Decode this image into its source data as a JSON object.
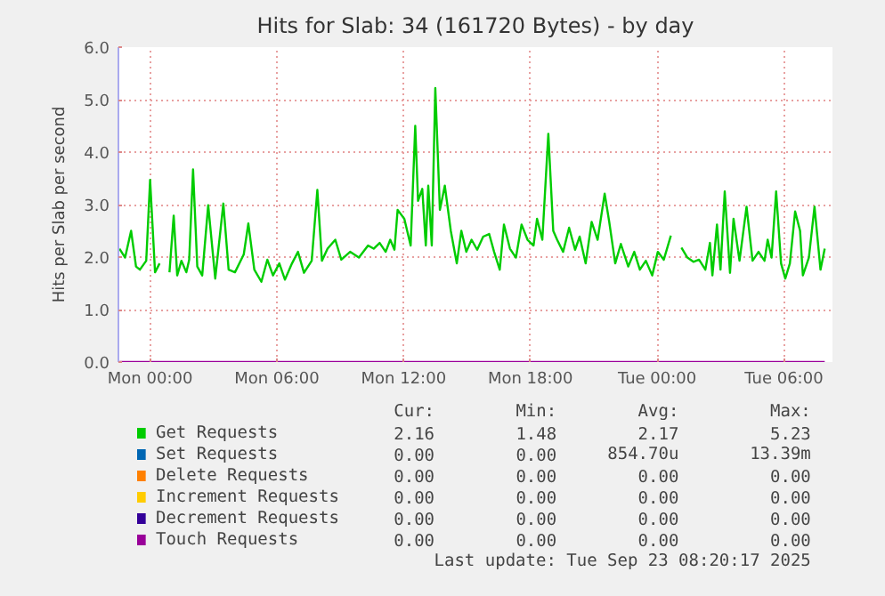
{
  "chart_data": {
    "type": "line",
    "title": "Hits for Slab: 34 (161720 Bytes) - by day",
    "ylabel": "Hits per Slab per second",
    "x": [
      "2025-09-21T22:33",
      "2025-09-21T22:49",
      "2025-09-21T23:06",
      "2025-09-21T23:20",
      "2025-09-21T23:31",
      "2025-09-21T23:49",
      "2025-09-22T00:00",
      "2025-09-22T00:14",
      "2025-09-22T00:27",
      "2025-09-22T00:40",
      "2025-09-22T00:55",
      "2025-09-22T01:07",
      "2025-09-22T01:17",
      "2025-09-22T01:29",
      "2025-09-22T01:43",
      "2025-09-22T01:51",
      "2025-09-22T02:02",
      "2025-09-22T02:14",
      "2025-09-22T02:28",
      "2025-09-22T02:45",
      "2025-09-22T03:05",
      "2025-09-22T03:28",
      "2025-09-22T03:43",
      "2025-09-22T04:01",
      "2025-09-22T04:26",
      "2025-09-22T04:39",
      "2025-09-22T04:56",
      "2025-09-22T05:16",
      "2025-09-22T05:33",
      "2025-09-22T05:49",
      "2025-09-22T06:07",
      "2025-09-22T06:23",
      "2025-09-22T06:43",
      "2025-09-22T07:00",
      "2025-09-22T07:17",
      "2025-09-22T07:39",
      "2025-09-22T07:55",
      "2025-09-22T08:08",
      "2025-09-22T08:24",
      "2025-09-22T08:46",
      "2025-09-22T09:03",
      "2025-09-22T09:28",
      "2025-09-22T09:53",
      "2025-09-22T10:19",
      "2025-09-22T10:35",
      "2025-09-22T10:52",
      "2025-09-22T11:09",
      "2025-09-22T11:22",
      "2025-09-22T11:34",
      "2025-09-22T11:43",
      "2025-09-22T12:02",
      "2025-09-22T12:20",
      "2025-09-22T12:33",
      "2025-09-22T12:41",
      "2025-09-22T12:53",
      "2025-09-22T13:03",
      "2025-09-22T13:10",
      "2025-09-22T13:20",
      "2025-09-22T13:30",
      "2025-09-22T13:43",
      "2025-09-22T13:57",
      "2025-09-22T14:14",
      "2025-09-22T14:31",
      "2025-09-22T14:44",
      "2025-09-22T14:58",
      "2025-09-22T15:13",
      "2025-09-22T15:29",
      "2025-09-22T15:46",
      "2025-09-22T16:03",
      "2025-09-22T16:17",
      "2025-09-22T16:33",
      "2025-09-22T16:45",
      "2025-09-22T17:02",
      "2025-09-22T17:19",
      "2025-09-22T17:35",
      "2025-09-22T17:52",
      "2025-09-22T18:09",
      "2025-09-22T18:19",
      "2025-09-22T18:34",
      "2025-09-22T18:51",
      "2025-09-22T19:05",
      "2025-09-22T19:16",
      "2025-09-22T19:33",
      "2025-09-22T19:50",
      "2025-09-22T20:07",
      "2025-09-22T20:20",
      "2025-09-22T20:37",
      "2025-09-22T20:54",
      "2025-09-22T21:11",
      "2025-09-22T21:31",
      "2025-09-22T21:44",
      "2025-09-22T22:01",
      "2025-09-22T22:17",
      "2025-09-22T22:38",
      "2025-09-22T22:55",
      "2025-09-22T23:11",
      "2025-09-22T23:28",
      "2025-09-22T23:46",
      "2025-09-23T00:02",
      "2025-09-23T00:19",
      "2025-09-23T00:39",
      "2025-09-23T00:52",
      "2025-09-23T01:09",
      "2025-09-23T01:26",
      "2025-09-23T01:43",
      "2025-09-23T01:59",
      "2025-09-23T02:17",
      "2025-09-23T02:30",
      "2025-09-23T02:37",
      "2025-09-23T02:50",
      "2025-09-23T03:00",
      "2025-09-23T03:12",
      "2025-09-23T03:27",
      "2025-09-23T03:37",
      "2025-09-23T03:54",
      "2025-09-23T04:14",
      "2025-09-23T04:31",
      "2025-09-23T04:48",
      "2025-09-23T05:05",
      "2025-09-23T05:14",
      "2025-09-23T05:25",
      "2025-09-23T05:38",
      "2025-09-23T05:52",
      "2025-09-23T06:04",
      "2025-09-23T06:17",
      "2025-09-23T06:32",
      "2025-09-23T06:46",
      "2025-09-23T06:54",
      "2025-09-23T07:11",
      "2025-09-23T07:27",
      "2025-09-23T07:44",
      "2025-09-23T07:56"
    ],
    "series": [
      {
        "name": "Get Requests",
        "color": "#00cc00",
        "values": [
          2.16,
          1.99,
          2.5,
          1.82,
          1.76,
          1.93,
          3.47,
          1.71,
          1.88,
          null,
          1.71,
          2.79,
          1.65,
          1.93,
          1.71,
          1.95,
          3.67,
          1.82,
          1.65,
          2.99,
          1.59,
          3.02,
          1.76,
          1.71,
          2.05,
          2.64,
          1.76,
          1.53,
          1.95,
          1.65,
          1.88,
          1.57,
          1.88,
          2.1,
          1.7,
          1.93,
          3.28,
          1.93,
          2.16,
          2.33,
          1.95,
          2.1,
          1.99,
          2.22,
          2.16,
          2.27,
          2.1,
          2.33,
          2.14,
          2.9,
          2.73,
          2.22,
          4.5,
          3.07,
          3.3,
          2.22,
          3.36,
          2.22,
          5.22,
          2.9,
          3.36,
          2.5,
          1.88,
          2.5,
          2.1,
          2.33,
          2.14,
          2.39,
          2.44,
          2.1,
          1.76,
          2.62,
          2.16,
          1.99,
          2.62,
          2.33,
          2.22,
          2.73,
          2.33,
          4.35,
          2.5,
          2.33,
          2.1,
          2.56,
          2.14,
          2.39,
          1.88,
          2.67,
          2.33,
          3.21,
          2.67,
          1.88,
          2.25,
          1.82,
          2.1,
          1.76,
          1.93,
          1.65,
          2.1,
          1.95,
          2.41,
          null,
          2.18,
          1.99,
          1.91,
          1.95,
          1.76,
          2.27,
          1.65,
          2.62,
          1.76,
          3.25,
          1.7,
          2.73,
          1.93,
          2.96,
          1.93,
          2.1,
          1.93,
          2.33,
          1.99,
          3.25,
          1.88,
          1.59,
          1.88,
          2.87,
          2.5,
          1.65,
          1.99,
          2.96,
          1.76,
          2.16
        ]
      },
      {
        "name": "Set Requests",
        "color": "#0066b3",
        "values": [
          null,
          null,
          null,
          null,
          null,
          null,
          null,
          null,
          null,
          null,
          null,
          null,
          null,
          null,
          null,
          null,
          null,
          null,
          null,
          null,
          null,
          null,
          null,
          null,
          null,
          null,
          null,
          null,
          null,
          null,
          null,
          null,
          null,
          null,
          null,
          null,
          null,
          null,
          null,
          null,
          null,
          null,
          null,
          null,
          null,
          null,
          null,
          null,
          null,
          null,
          null,
          null,
          null,
          null,
          null,
          null,
          null,
          null,
          null,
          null,
          null,
          null,
          null,
          null,
          null,
          null,
          null,
          null,
          null,
          null,
          null,
          null,
          null,
          null,
          null,
          null,
          null,
          null,
          null,
          null,
          null,
          null,
          null,
          null,
          null,
          null,
          null,
          null,
          null,
          null,
          null,
          null,
          null,
          null,
          null,
          null,
          null,
          null,
          null,
          null,
          null,
          null,
          null,
          null,
          null,
          null,
          null,
          null,
          null,
          null,
          null,
          null,
          null,
          null,
          null,
          null,
          null,
          null,
          null,
          null,
          null,
          null,
          null,
          null,
          null,
          null,
          null,
          null,
          null,
          null,
          null,
          null
        ]
      },
      {
        "name": "Delete Requests",
        "color": "#ff8000",
        "values": [
          null,
          null,
          null,
          null,
          null,
          null,
          null,
          null,
          null,
          null,
          null,
          null,
          null,
          null,
          null,
          null,
          null,
          null,
          null,
          null,
          null,
          null,
          null,
          null,
          null,
          null,
          null,
          null,
          null,
          null,
          null,
          null,
          null,
          null,
          null,
          null,
          null,
          null,
          null,
          null,
          null,
          null,
          null,
          null,
          null,
          null,
          null,
          null,
          null,
          null,
          null,
          null,
          null,
          null,
          null,
          null,
          null,
          null,
          null,
          null,
          null,
          null,
          null,
          null,
          null,
          null,
          null,
          null,
          null,
          null,
          null,
          null,
          null,
          null,
          null,
          null,
          null,
          null,
          null,
          null,
          null,
          null,
          null,
          null,
          null,
          null,
          null,
          null,
          null,
          null,
          null,
          null,
          null,
          null,
          null,
          null,
          null,
          null,
          null,
          null,
          null,
          null,
          null,
          null,
          null,
          null,
          null,
          null,
          null,
          null,
          null,
          null,
          null,
          null,
          null,
          null,
          null,
          null,
          null,
          null,
          null,
          null,
          null,
          null,
          null,
          null,
          null,
          null,
          null,
          null,
          null,
          null
        ]
      },
      {
        "name": "Increment Requests",
        "color": "#ffcc00",
        "values": [
          null,
          null,
          null,
          null,
          null,
          null,
          null,
          null,
          null,
          null,
          null,
          null,
          null,
          null,
          null,
          null,
          null,
          null,
          null,
          null,
          null,
          null,
          null,
          null,
          null,
          null,
          null,
          null,
          null,
          null,
          null,
          null,
          null,
          null,
          null,
          null,
          null,
          null,
          null,
          null,
          null,
          null,
          null,
          null,
          null,
          null,
          null,
          null,
          null,
          null,
          null,
          null,
          null,
          null,
          null,
          null,
          null,
          null,
          null,
          null,
          null,
          null,
          null,
          null,
          null,
          null,
          null,
          null,
          null,
          null,
          null,
          null,
          null,
          null,
          null,
          null,
          null,
          null,
          null,
          null,
          null,
          null,
          null,
          null,
          null,
          null,
          null,
          null,
          null,
          null,
          null,
          null,
          null,
          null,
          null,
          null,
          null,
          null,
          null,
          null,
          null,
          null,
          null,
          null,
          null,
          null,
          null,
          null,
          null,
          null,
          null,
          null,
          null,
          null,
          null,
          null,
          null,
          null,
          null,
          null,
          null,
          null,
          null,
          null,
          null,
          null,
          null,
          null,
          null,
          null,
          null,
          null
        ]
      },
      {
        "name": "Decrement Requests",
        "color": "#330099",
        "values": [
          null,
          null,
          null,
          null,
          null,
          null,
          null,
          null,
          null,
          null,
          null,
          null,
          null,
          null,
          null,
          null,
          null,
          null,
          null,
          null,
          null,
          null,
          null,
          null,
          null,
          null,
          null,
          null,
          null,
          null,
          null,
          null,
          null,
          null,
          null,
          null,
          null,
          null,
          null,
          null,
          null,
          null,
          null,
          null,
          null,
          null,
          null,
          null,
          null,
          null,
          null,
          null,
          null,
          null,
          null,
          null,
          null,
          null,
          null,
          null,
          null,
          null,
          null,
          null,
          null,
          null,
          null,
          null,
          null,
          null,
          null,
          null,
          null,
          null,
          null,
          null,
          null,
          null,
          null,
          null,
          null,
          null,
          null,
          null,
          null,
          null,
          null,
          null,
          null,
          null,
          null,
          null,
          null,
          null,
          null,
          null,
          null,
          null,
          null,
          null,
          null,
          null,
          null,
          null,
          null,
          null,
          null,
          null,
          null,
          null,
          null,
          null,
          null,
          null,
          null,
          null,
          null,
          null,
          null,
          null,
          null,
          null,
          null,
          null,
          null,
          null,
          null,
          null,
          null,
          null,
          null,
          null
        ]
      },
      {
        "name": "Touch Requests",
        "color": "#990099",
        "x": [
          "2025-09-21T22:33",
          "2025-09-23T07:56"
        ],
        "values": [
          0,
          0
        ]
      }
    ],
    "xlim": [
      "2025-09-21T22:30",
      "2025-09-23T08:18"
    ],
    "xticks": [
      {
        "value": "2025-09-22T00:00",
        "label": "Mon 00:00"
      },
      {
        "value": "2025-09-22T06:00",
        "label": "Mon 06:00"
      },
      {
        "value": "2025-09-22T12:00",
        "label": "Mon 12:00"
      },
      {
        "value": "2025-09-22T18:00",
        "label": "Mon 18:00"
      },
      {
        "value": "2025-09-23T00:00",
        "label": "Tue 00:00"
      },
      {
        "value": "2025-09-23T06:00",
        "label": "Tue 06:00"
      }
    ],
    "ylim": [
      0,
      6
    ],
    "yticks": [
      {
        "value": 0,
        "label": "0.0"
      },
      {
        "value": 1,
        "label": "1.0"
      },
      {
        "value": 2,
        "label": "2.0"
      },
      {
        "value": 3,
        "label": "3.0"
      },
      {
        "value": 4,
        "label": "4.0"
      },
      {
        "value": 5,
        "label": "5.0"
      },
      {
        "value": 6,
        "label": "6.0"
      }
    ],
    "grid": true,
    "legend": "bottom",
    "annotations": [
      "Cur:",
      "Min:",
      "Avg:",
      "Max:",
      "2.16",
      "1.48",
      "2.17",
      "5.23",
      "0.00",
      "0.00",
      "854.70u",
      "13.39m",
      "0.00",
      "0.00",
      "0.00",
      "0.00",
      "0.00",
      "0.00",
      "0.00",
      "0.00",
      "0.00",
      "0.00",
      "0.00",
      "0.00",
      "0.00",
      "0.00",
      "0.00",
      "0.00",
      "Last update: Tue Sep 23 08:20:17 2025"
    ]
  }
}
